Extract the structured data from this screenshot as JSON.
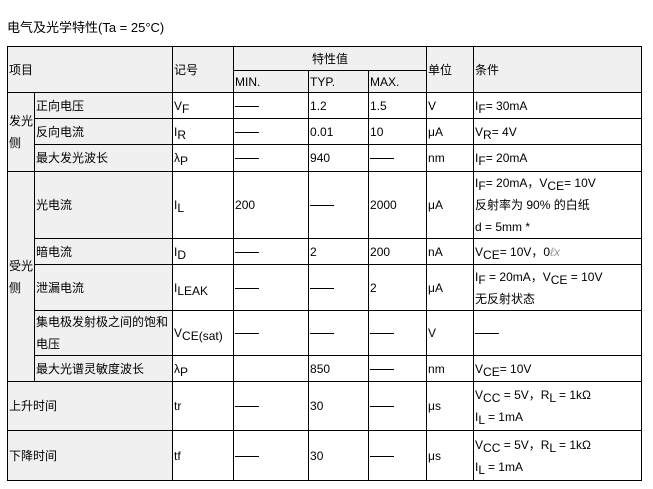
{
  "title": "电气及光学特性(Ta = 25°C)",
  "header": {
    "item": "项目",
    "symbol": "记号",
    "values": "特性值",
    "min": "MIN.",
    "typ": "TYP.",
    "max": "MAX.",
    "unit": "单位",
    "condition": "条件"
  },
  "groups": {
    "emitter": "发光侧",
    "receiver": "受光侧"
  },
  "dash": "——",
  "rows": [
    {
      "group": "emitter",
      "name": "正向电压",
      "sym": [
        "V",
        "F"
      ],
      "min": "—",
      "typ": "1.2",
      "max": "1.5",
      "unit": "V",
      "cond": [
        [
          [
            "I",
            ""
          ],
          [
            "F",
            "s"
          ],
          [
            "= 30mA",
            ""
          ]
        ]
      ]
    },
    {
      "group": "emitter",
      "name": "反向电流",
      "sym": [
        "I",
        "R"
      ],
      "min": "—",
      "typ": "0.01",
      "max": "10",
      "unit": "μA",
      "cond": [
        [
          [
            "V",
            ""
          ],
          [
            "R",
            "s"
          ],
          [
            "= 4V",
            ""
          ]
        ]
      ]
    },
    {
      "group": "emitter",
      "name": "最大发光波长",
      "sym": [
        "λ",
        "P"
      ],
      "min": "—",
      "typ": "940",
      "max": "—",
      "unit": "nm",
      "cond": [
        [
          [
            "I",
            ""
          ],
          [
            "F",
            "s"
          ],
          [
            "= 20mA",
            ""
          ]
        ]
      ]
    },
    {
      "group": "receiver",
      "name": "光电流",
      "sym": [
        "I",
        "L"
      ],
      "min": "200",
      "typ": "—",
      "max": "2000",
      "unit": "μA",
      "cond": [
        [
          [
            "I",
            ""
          ],
          [
            "F",
            "s"
          ],
          [
            "= 20mA，V",
            ""
          ],
          [
            "CE",
            "s"
          ],
          [
            "= 10V",
            ""
          ]
        ],
        [
          [
            "反射率为 90% 的白纸",
            ""
          ]
        ],
        [
          [
            "d = 5mm            *",
            ""
          ]
        ]
      ]
    },
    {
      "group": "receiver",
      "name": "暗电流",
      "sym": [
        "I",
        "D"
      ],
      "min": "—",
      "typ": "2",
      "max": "200",
      "unit": "nA",
      "cond": [
        [
          [
            "V",
            ""
          ],
          [
            "CE",
            "s"
          ],
          [
            "= 10V，0",
            ""
          ],
          [
            "ℓx",
            "x"
          ]
        ]
      ]
    },
    {
      "group": "receiver",
      "name": "泄漏电流",
      "sym": [
        "I",
        "LEAK"
      ],
      "min": "—",
      "typ": "—",
      "max": "2",
      "unit": "μA",
      "cond": [
        [
          [
            "I",
            ""
          ],
          [
            "F",
            "s"
          ],
          [
            " = 20mA，V",
            ""
          ],
          [
            "CE",
            "s"
          ],
          [
            " = 10V",
            ""
          ]
        ],
        [
          [
            "无反射状态",
            ""
          ]
        ]
      ]
    },
    {
      "group": "receiver",
      "name": "集电极发射极之间的饱和电压",
      "sym": [
        "V",
        "CE(sat)"
      ],
      "min": "—",
      "typ": "—",
      "max": "—",
      "unit": "V",
      "cond": [
        [
          [
            "—",
            "d"
          ]
        ]
      ]
    },
    {
      "group": "receiver",
      "name": "最大光谱灵敏度波长",
      "sym": [
        "λ",
        "P"
      ],
      "min": "",
      "typ": "850",
      "max": "—",
      "unit": "nm",
      "cond": [
        [
          [
            "V",
            ""
          ],
          [
            "CE",
            "s"
          ],
          [
            "= 10V",
            ""
          ]
        ]
      ]
    },
    {
      "group": "",
      "name": "上升时间",
      "sym": [
        "tr",
        ""
      ],
      "min": "—",
      "typ": "30",
      "max": "—",
      "unit": "μs",
      "cond": [
        [
          [
            "V",
            ""
          ],
          [
            "CC",
            "s"
          ],
          [
            " = 5V，R",
            ""
          ],
          [
            "L",
            "s"
          ],
          [
            " = 1kΩ",
            ""
          ]
        ],
        [
          [
            "I",
            ""
          ],
          [
            "L",
            "s"
          ],
          [
            " = 1mA",
            ""
          ]
        ]
      ]
    },
    {
      "group": "",
      "name": "下降时间",
      "sym": [
        "tf",
        ""
      ],
      "min": "—",
      "typ": "30",
      "max": "—",
      "unit": "μs",
      "cond": [
        [
          [
            "V",
            ""
          ],
          [
            "CC",
            "s"
          ],
          [
            " = 5V，R",
            ""
          ],
          [
            "L",
            "s"
          ],
          [
            " = 1kΩ",
            ""
          ]
        ],
        [
          [
            "I",
            ""
          ],
          [
            "L",
            "s"
          ],
          [
            " = 1mA",
            ""
          ]
        ]
      ]
    }
  ]
}
